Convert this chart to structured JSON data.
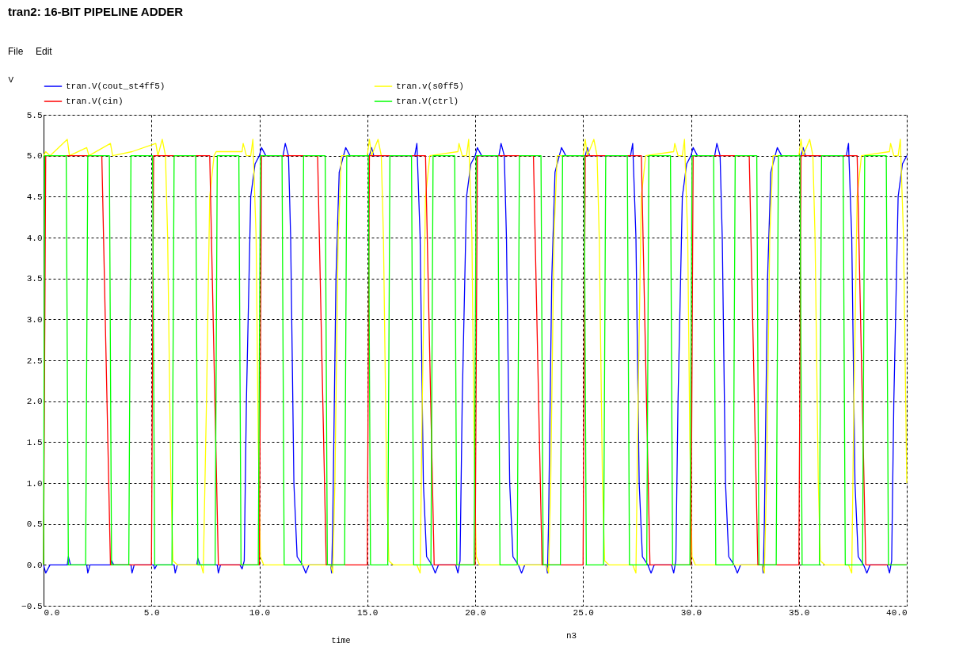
{
  "chart_data": {
    "type": "line",
    "title": "tran2: 16-BIT PIPELINE ADDER",
    "xlabel": "time",
    "ylabel": "V",
    "annotations": [
      "File",
      "Edit",
      "n3"
    ],
    "xlim": [
      0,
      40
    ],
    "ylim": [
      -0.5,
      5.5
    ],
    "xticks": [
      {
        "value": 0,
        "label": "0.0"
      },
      {
        "value": 5,
        "label": "5.0"
      },
      {
        "value": 10,
        "label": "10.0"
      },
      {
        "value": 15,
        "label": "15.0"
      },
      {
        "value": 20,
        "label": "20.0"
      },
      {
        "value": 25,
        "label": "25.0"
      },
      {
        "value": 30,
        "label": "30.0"
      },
      {
        "value": 35,
        "label": "35.0"
      },
      {
        "value": 40,
        "label": "40.0"
      }
    ],
    "yticks": [
      -0.5,
      {
        "value": 0,
        "label": "0.0"
      },
      0.5,
      {
        "value": 1,
        "label": "1.0"
      },
      1.5,
      {
        "value": 2,
        "label": "2.0"
      },
      2.5,
      {
        "value": 3,
        "label": "3.0"
      },
      3.5,
      {
        "value": 4,
        "label": "4.0"
      },
      4.5,
      {
        "value": 5,
        "label": "5.0"
      },
      5.5
    ],
    "grid": true,
    "legend": "top",
    "line_style": "solid",
    "marker": "none",
    "series": [
      {
        "name": "tran.V(cout_st4ff5)",
        "color": "#0000ff",
        "x": [
          0,
          0.1,
          0.3,
          1.1,
          1.15,
          1.25,
          2.0,
          2.05,
          2.15,
          3.1,
          3.15,
          3.25,
          4.05,
          4.1,
          4.2,
          5.1,
          5.15,
          5.25,
          6.05,
          6.1,
          6.2,
          7.1,
          7.15,
          7.25,
          8.05,
          8.1,
          8.2,
          9.1,
          9.2,
          9.3,
          9.4,
          9.6,
          9.8,
          10.0,
          10.1,
          10.3,
          11.1,
          11.2,
          11.35,
          11.45,
          11.6,
          11.75,
          12.0,
          12.15,
          12.3,
          13.3,
          13.35,
          13.4,
          13.55,
          13.7,
          13.9,
          14.0,
          14.2,
          15.1,
          15.2,
          15.3,
          17.2,
          17.3,
          17.45,
          17.6,
          17.75,
          18.0,
          18.15,
          18.3,
          19.1,
          19.2,
          19.3,
          19.4,
          19.6,
          19.8,
          20.0,
          20.1,
          20.3,
          21.1,
          21.2,
          21.35,
          21.45,
          21.6,
          21.75,
          22.0,
          22.15,
          22.3,
          23.3,
          23.35,
          23.4,
          23.55,
          23.7,
          23.9,
          24.0,
          24.2,
          25.1,
          25.2,
          25.3,
          27.2,
          27.3,
          27.45,
          27.6,
          27.75,
          28.0,
          28.15,
          28.3,
          29.1,
          29.2,
          29.3,
          29.4,
          29.6,
          29.8,
          30.0,
          30.1,
          30.3,
          31.1,
          31.2,
          31.35,
          31.45,
          31.6,
          31.75,
          32.0,
          32.15,
          32.3,
          33.3,
          33.35,
          33.4,
          33.55,
          33.7,
          33.9,
          34.0,
          34.2,
          35.1,
          35.2,
          35.3,
          37.2,
          37.3,
          37.45,
          37.6,
          37.75,
          38.0,
          38.15,
          38.3,
          39.1,
          39.2,
          39.3,
          39.4,
          39.6,
          39.8,
          40
        ],
        "values": [
          0,
          -0.1,
          0,
          0,
          0.1,
          0,
          0,
          -0.1,
          0,
          0,
          0.05,
          0,
          0,
          -0.1,
          0,
          0,
          -0.05,
          0,
          0,
          -0.1,
          0,
          0,
          0.08,
          0,
          0,
          -0.1,
          0,
          0,
          -0.05,
          0.05,
          2.0,
          4.5,
          4.9,
          5.0,
          5.1,
          5.0,
          5.0,
          5.15,
          5.0,
          4.0,
          1.0,
          0.1,
          0.0,
          -0.1,
          0.0,
          0.0,
          -0.1,
          0.5,
          3.5,
          4.8,
          5.0,
          5.1,
          5.0,
          5.0,
          5.1,
          5.0,
          5.0,
          5.15,
          4.0,
          1.0,
          0.1,
          0.0,
          -0.1,
          0.0,
          0.0,
          -0.1,
          0.05,
          2.0,
          4.5,
          4.9,
          5.0,
          5.1,
          5.0,
          5.0,
          5.15,
          5.0,
          4.0,
          1.0,
          0.1,
          0.0,
          -0.1,
          0.0,
          0.0,
          -0.1,
          0.5,
          3.5,
          4.8,
          5.0,
          5.1,
          5.0,
          5.0,
          5.1,
          5.0,
          5.0,
          5.15,
          4.0,
          1.0,
          0.1,
          0.0,
          -0.1,
          0.0,
          0.0,
          -0.1,
          0.05,
          2.0,
          4.5,
          4.9,
          5.0,
          5.1,
          5.0,
          5.0,
          5.15,
          5.0,
          4.0,
          1.0,
          0.1,
          0.0,
          -0.1,
          0.0,
          0.0,
          -0.1,
          0.5,
          3.5,
          4.8,
          5.0,
          5.1,
          5.0,
          5.0,
          5.1,
          5.0,
          5.0,
          5.15,
          4.0,
          1.0,
          0.1,
          0.0,
          -0.1,
          0.0,
          0.0,
          -0.1,
          0.05,
          2.0,
          4.5,
          4.9,
          5.0
        ]
      },
      {
        "name": "tran.v(s0ff5)",
        "color": "#ffff00",
        "x": [
          0,
          0.1,
          0.3,
          1.1,
          1.2,
          2.0,
          2.1,
          3.1,
          3.2,
          4.1,
          5.2,
          5.3,
          5.5,
          5.65,
          5.75,
          5.9,
          6.0,
          6.2,
          7.3,
          7.4,
          7.55,
          7.7,
          7.9,
          8.0,
          9.2,
          9.25,
          9.4,
          9.6,
          9.7,
          9.85,
          9.95,
          10.05,
          10.2,
          13.3,
          13.4,
          13.5,
          13.65,
          13.8,
          15.0,
          15.1,
          15.2,
          15.5,
          15.65,
          15.75,
          15.9,
          16.0,
          16.2,
          17.3,
          17.45,
          17.55,
          17.7,
          17.9,
          19.2,
          19.25,
          19.4,
          19.6,
          19.7,
          19.85,
          19.95,
          20.05,
          20.2,
          23.3,
          23.4,
          23.5,
          23.65,
          23.8,
          25.0,
          25.1,
          25.2,
          25.5,
          25.65,
          25.75,
          25.9,
          26.0,
          26.2,
          27.3,
          27.45,
          27.55,
          27.7,
          27.9,
          29.2,
          29.25,
          29.4,
          29.6,
          29.7,
          29.85,
          29.95,
          30.05,
          30.2,
          33.3,
          33.4,
          33.5,
          33.65,
          33.8,
          35.0,
          35.1,
          35.2,
          35.5,
          35.65,
          35.75,
          35.9,
          36.0,
          36.2,
          37.3,
          37.45,
          37.55,
          37.7,
          37.9,
          39.2,
          39.25,
          39.4,
          39.6,
          39.7,
          39.85,
          40
        ],
        "values": [
          5.0,
          5.05,
          5.0,
          5.2,
          5.0,
          5.1,
          5.0,
          5.15,
          5.0,
          5.05,
          5.15,
          5.0,
          5.2,
          5.0,
          4.0,
          1.0,
          0.05,
          0.0,
          0.0,
          -0.1,
          2.0,
          4.5,
          5.0,
          5.05,
          5.05,
          5.15,
          5.0,
          5.0,
          5.2,
          4.0,
          1.5,
          0.1,
          0.0,
          0.0,
          -0.1,
          1.0,
          4.0,
          5.0,
          5.0,
          5.2,
          5.0,
          5.2,
          5.0,
          4.0,
          1.0,
          0.05,
          0.0,
          0.0,
          -0.1,
          2.0,
          4.5,
          5.0,
          5.05,
          5.15,
          5.0,
          5.0,
          5.2,
          4.0,
          1.5,
          0.1,
          0.0,
          0.0,
          -0.1,
          1.0,
          4.0,
          5.0,
          5.0,
          5.2,
          5.0,
          5.2,
          5.0,
          4.0,
          1.0,
          0.05,
          0.0,
          0.0,
          -0.1,
          2.0,
          4.5,
          5.0,
          5.05,
          5.15,
          5.0,
          5.0,
          5.2,
          4.0,
          1.5,
          0.1,
          0.0,
          0.0,
          -0.1,
          1.0,
          4.0,
          5.0,
          5.0,
          5.2,
          5.0,
          5.2,
          5.0,
          4.0,
          1.0,
          0.05,
          0.0,
          0.0,
          -0.1,
          2.0,
          4.5,
          5.0,
          5.05,
          5.15,
          5.0,
          5.0,
          5.2,
          4.0,
          1.0
        ]
      },
      {
        "name": "tran.V(cin)",
        "color": "#ff0000",
        "x": [
          0,
          0.1,
          2.7,
          2.9,
          3.1,
          5.0,
          5.1,
          7.7,
          7.9,
          8.1,
          10.0,
          10.1,
          12.7,
          12.9,
          13.1,
          15.0,
          15.1,
          17.7,
          17.9,
          18.1,
          20.0,
          20.1,
          22.7,
          22.9,
          23.1,
          25.0,
          25.1,
          27.7,
          27.9,
          28.1,
          30.0,
          30.1,
          32.7,
          32.9,
          33.1,
          35.0,
          35.1,
          37.7,
          37.9,
          38.1,
          40
        ],
        "values": [
          0,
          5,
          5,
          2.5,
          0,
          0,
          5,
          5,
          2.5,
          0,
          0,
          5,
          5,
          2.5,
          0,
          0,
          5,
          5,
          2.5,
          0,
          0,
          5,
          5,
          2.5,
          0,
          0,
          5,
          5,
          2.5,
          0,
          0,
          5,
          5,
          2.5,
          0,
          0,
          5,
          5,
          2.5,
          0,
          0
        ]
      },
      {
        "name": "tran.V(ctrl)",
        "color": "#00ff00",
        "x": [
          0,
          0.05,
          1.05,
          1.15,
          1.95,
          2.05,
          3.05,
          3.15,
          3.95,
          4.05,
          5.05,
          5.15,
          5.95,
          6.05,
          7.05,
          7.15,
          7.95,
          8.05,
          9.05,
          9.15,
          9.95,
          10.05,
          11.05,
          11.15,
          11.95,
          12.05,
          13.05,
          13.15,
          13.95,
          14.05,
          15.05,
          15.15,
          15.95,
          16.05,
          17.05,
          17.15,
          17.95,
          18.05,
          19.05,
          19.15,
          19.95,
          20.05,
          21.05,
          21.15,
          21.95,
          22.05,
          23.05,
          23.15,
          23.95,
          24.05,
          25.05,
          25.15,
          25.95,
          26.05,
          27.05,
          27.15,
          27.95,
          28.05,
          29.05,
          29.15,
          29.95,
          30.05,
          31.05,
          31.15,
          31.95,
          32.05,
          33.05,
          33.15,
          33.95,
          34.05,
          35.05,
          35.15,
          35.95,
          36.05,
          37.05,
          37.15,
          37.95,
          38.05,
          39.05,
          39.15,
          40
        ],
        "values": [
          0,
          5,
          5,
          0,
          0,
          5,
          5,
          0,
          0,
          5,
          5,
          0,
          0,
          5,
          5,
          0,
          0,
          5,
          5,
          0,
          0,
          5,
          5,
          0,
          0,
          5,
          5,
          0,
          0,
          5,
          5,
          0,
          0,
          5,
          5,
          0,
          0,
          5,
          5,
          0,
          0,
          5,
          5,
          0,
          0,
          5,
          5,
          0,
          0,
          5,
          5,
          0,
          0,
          5,
          5,
          0,
          0,
          5,
          5,
          0,
          0,
          5,
          5,
          0,
          0,
          5,
          5,
          0,
          0,
          5,
          5,
          0,
          0,
          5,
          5,
          0,
          0,
          5,
          5,
          0,
          0
        ]
      }
    ]
  }
}
